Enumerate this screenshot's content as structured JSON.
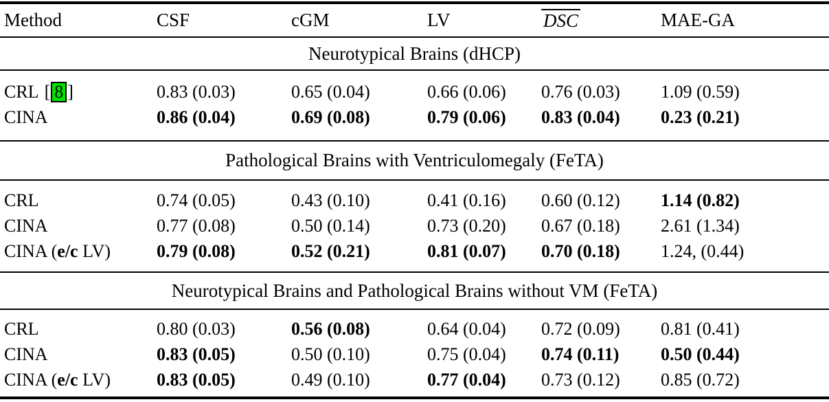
{
  "table": {
    "columns": [
      "Method",
      "CSF",
      "cGM",
      "LV",
      "DSC",
      "MAE-GA"
    ],
    "citation_highlight_color": "#00e400",
    "sections": [
      {
        "title": "Neurotypical Brains (dHCP)",
        "rows": [
          {
            "method": "CRL",
            "citation": {
              "open": "[",
              "label": "8",
              "close": "]"
            },
            "values": [
              "0.83 (0.03)",
              "0.65 (0.04)",
              "0.66 (0.06)",
              "0.76 (0.03)",
              "1.09 (0.59)"
            ]
          },
          {
            "method": "CINA",
            "values": [
              "0.86 (0.04)",
              "0.69 (0.08)",
              "0.79 (0.06)",
              "0.83 (0.04)",
              "0.23 (0.21)"
            ]
          }
        ]
      },
      {
        "title": "Pathological Brains with Ventriculomegaly (FeTA)",
        "rows": [
          {
            "method": "CRL",
            "values": [
              "0.74 (0.05)",
              "0.43 (0.10)",
              "0.41 (0.16)",
              "0.60 (0.12)",
              "1.14 (0.82)"
            ]
          },
          {
            "method": "CINA",
            "values": [
              "0.77 (0.08)",
              "0.50 (0.14)",
              "0.73 (0.20)",
              "0.67 (0.18)",
              "2.61 (1.34)"
            ]
          },
          {
            "method_prefix": "CINA (",
            "method_bold": "e/c",
            "method_suffix": " LV)",
            "values": [
              "0.79 (0.08)",
              "0.52 (0.21)",
              "0.81 (0.07)",
              "0.70 (0.18)",
              "1.24, (0.44)"
            ]
          }
        ]
      },
      {
        "title": "Neurotypical Brains and Pathological Brains without VM (FeTA)",
        "rows": [
          {
            "method": "CRL",
            "values": [
              "0.80 (0.03)",
              "0.56 (0.08)",
              "0.64 (0.04)",
              "0.72 (0.09)",
              "0.81 (0.41)"
            ]
          },
          {
            "method": "CINA",
            "values": [
              "0.83 (0.05)",
              "0.50 (0.10)",
              "0.75 (0.04)",
              "0.74 (0.11)",
              "0.50 (0.44)"
            ]
          },
          {
            "method_prefix": "CINA (",
            "method_bold": "e/c",
            "method_suffix": " LV)",
            "values": [
              "0.83 (0.05)",
              "0.49 (0.10)",
              "0.77 (0.04)",
              "0.73 (0.12)",
              "0.85 (0.72)"
            ]
          }
        ]
      }
    ]
  }
}
